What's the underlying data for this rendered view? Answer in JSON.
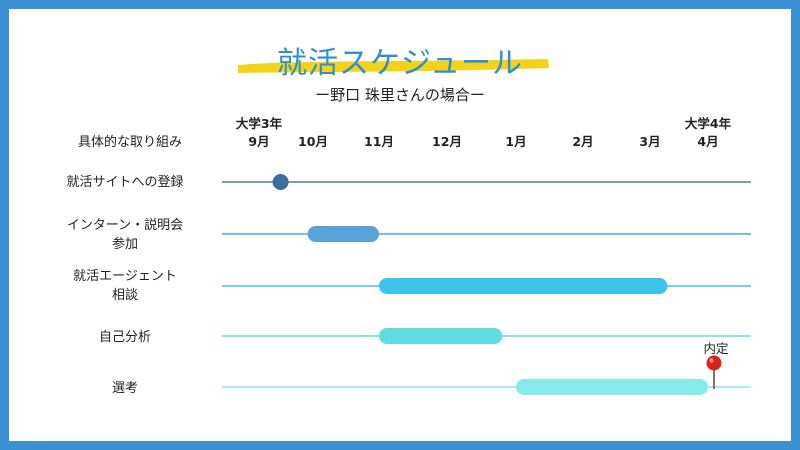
{
  "title": "就活スケジュール",
  "subtitle": "ー野口 珠里さんの場合ー",
  "column_header": "具体的な取り組み",
  "year_labels": {
    "start": "大学3年",
    "end": "大学4年"
  },
  "months": [
    "9月",
    "10月",
    "11月",
    "12月",
    "1月",
    "2月",
    "3月",
    "4月"
  ],
  "rows": [
    {
      "label_lines": [
        "就活サイトへの登録"
      ],
      "color": "#3d6d9c",
      "line_color": "#4a7aa3"
    },
    {
      "label_lines": [
        "インターン・説明会",
        "参加"
      ],
      "color": "#5aa3d8",
      "line_color": "#5aa3d8"
    },
    {
      "label_lines": [
        "就活エージェント",
        "相談"
      ],
      "color": "#3cc3ea",
      "line_color": "#3cc3ea"
    },
    {
      "label_lines": [
        "自己分析"
      ],
      "color": "#62dcdf",
      "line_color": "#62dcdf"
    },
    {
      "label_lines": [
        "選考"
      ],
      "color": "#86eaea",
      "line_color": "#86eaea"
    }
  ],
  "chart_data": {
    "type": "gantt",
    "title": "就活スケジュール",
    "subtitle": "ー野口 珠里さんの場合ー",
    "months": [
      "9月",
      "10月",
      "11月",
      "12月",
      "1月",
      "2月",
      "3月",
      "4月"
    ],
    "tasks": [
      {
        "name": "就活サイトへの登録",
        "kind": "milestone",
        "at": 9.4
      },
      {
        "name": "インターン・説明会参加",
        "kind": "bar",
        "start": 9.9,
        "end": 11.0
      },
      {
        "name": "就活エージェント相談",
        "kind": "bar",
        "start": 11.0,
        "end": 15.3
      },
      {
        "name": "自己分析",
        "kind": "bar",
        "start": 11.0,
        "end": 12.8
      },
      {
        "name": "選考",
        "kind": "bar",
        "start": 13.0,
        "end": 16.0
      }
    ],
    "marker": {
      "label": "内定",
      "at": 16.1,
      "row": "選考"
    }
  },
  "marker_label": "内定",
  "colors": {
    "frame": "#3b8fd3",
    "title": "#2f8fcf",
    "highlight": "#f3d21b",
    "pin": "#d9201c"
  }
}
